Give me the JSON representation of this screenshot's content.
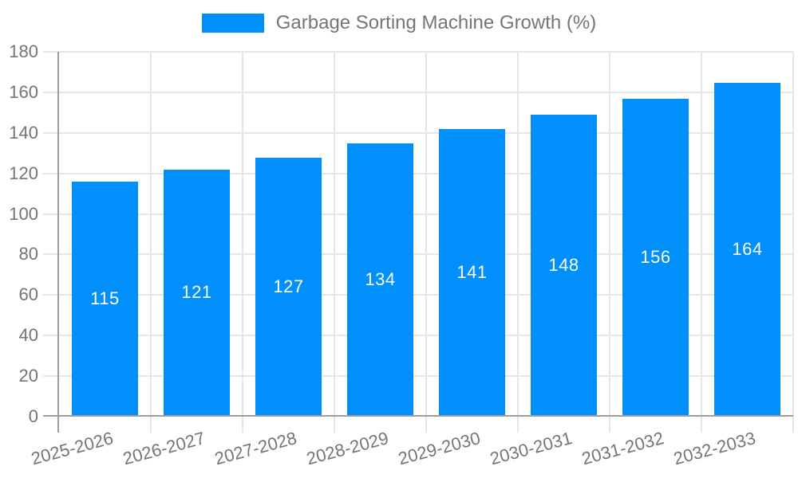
{
  "legend": {
    "label": "Garbage Sorting Machine Growth (%)"
  },
  "chart_data": {
    "type": "bar",
    "title": "Garbage Sorting Machine Growth (%)",
    "categories": [
      "2025-2026",
      "2026-2027",
      "2027-2028",
      "2028-2029",
      "2029-2030",
      "2030-2031",
      "2031-2032",
      "2032-2033"
    ],
    "values": [
      115,
      121,
      127,
      134,
      141,
      148,
      156,
      164
    ],
    "xlabel": "",
    "ylabel": "",
    "ylim": [
      0,
      180
    ],
    "y_ticks": [
      0,
      20,
      40,
      60,
      80,
      100,
      120,
      140,
      160,
      180
    ],
    "grid": true,
    "legend_position": "top",
    "bar_color": "#008FFB",
    "bar_label_color": "#ffffff",
    "axis_color": "#9e9e9e",
    "grid_color": "#e6e6e6",
    "text_color": "#757575"
  }
}
